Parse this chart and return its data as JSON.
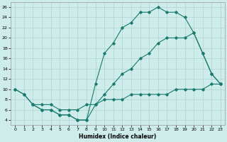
{
  "xlabel": "Humidex (Indice chaleur)",
  "background_color": "#cdecea",
  "grid_color": "#aed4d0",
  "line_color": "#1a7a6e",
  "xlim": [
    -0.5,
    23.5
  ],
  "ylim": [
    3,
    27
  ],
  "xticks": [
    0,
    1,
    2,
    3,
    4,
    5,
    6,
    7,
    8,
    9,
    10,
    11,
    12,
    13,
    14,
    15,
    16,
    17,
    18,
    19,
    20,
    21,
    22,
    23
  ],
  "yticks": [
    4,
    6,
    8,
    10,
    12,
    14,
    16,
    18,
    20,
    22,
    24,
    26
  ],
  "line1_x": [
    0,
    1,
    2,
    3,
    4,
    5,
    6,
    7,
    8,
    9,
    10,
    11,
    12,
    13,
    14,
    15,
    16,
    17,
    18,
    19,
    20,
    21,
    22,
    23
  ],
  "line1_y": [
    10,
    9,
    7,
    6,
    6,
    5,
    5,
    4,
    4,
    11,
    17,
    19,
    22,
    23,
    25,
    25,
    26,
    25,
    25,
    24,
    21,
    17,
    13,
    11
  ],
  "line2_x": [
    0,
    1,
    2,
    3,
    4,
    5,
    6,
    7,
    8,
    9,
    10,
    11,
    12,
    13,
    14,
    15,
    16,
    17,
    18,
    19,
    20,
    21,
    22,
    23
  ],
  "line2_y": [
    10,
    9,
    7,
    6,
    6,
    5,
    5,
    4,
    4,
    7,
    9,
    11,
    13,
    14,
    16,
    17,
    19,
    20,
    20,
    20,
    21,
    17,
    13,
    11
  ],
  "line3_x": [
    2,
    3,
    4,
    5,
    6,
    7,
    8,
    9,
    10,
    11,
    12,
    13,
    14,
    15,
    16,
    17,
    18,
    19,
    20,
    21,
    22,
    23
  ],
  "line3_y": [
    7,
    7,
    7,
    6,
    6,
    6,
    7,
    7,
    8,
    8,
    8,
    9,
    9,
    9,
    9,
    9,
    10,
    10,
    10,
    10,
    11,
    11
  ]
}
